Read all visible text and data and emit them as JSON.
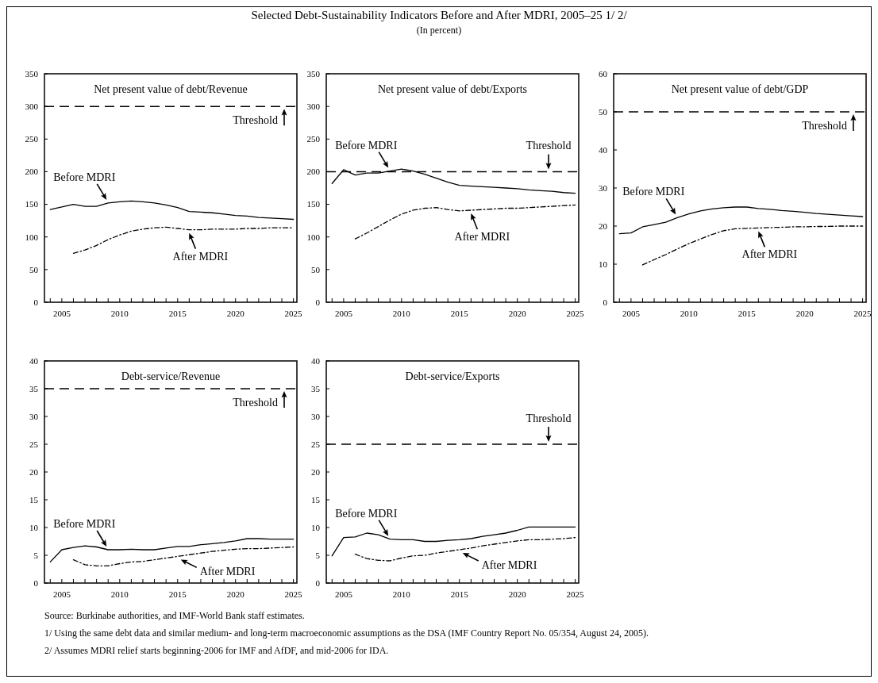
{
  "chart_data": [
    {
      "type": "line",
      "title": "Net present value of debt/Revenue",
      "annotations": [
        "Selected Debt-Sustainability Indicators Before and After MDRI, 2005–25 1/ 2/",
        "(In percent)"
      ],
      "xlim": [
        2003.5,
        2025.3
      ],
      "xticks": [
        {
          "value": 2004,
          "label": null
        },
        2005,
        {
          "value": 2006,
          "label": null
        },
        {
          "value": 2007,
          "label": null
        },
        {
          "value": 2008,
          "label": null
        },
        {
          "value": 2009,
          "label": null
        },
        2010,
        {
          "value": 2011,
          "label": null
        },
        {
          "value": 2012,
          "label": null
        },
        {
          "value": 2013,
          "label": null
        },
        {
          "value": 2014,
          "label": null
        },
        2015,
        {
          "value": 2016,
          "label": null
        },
        {
          "value": 2017,
          "label": null
        },
        {
          "value": 2018,
          "label": null
        },
        {
          "value": 2019,
          "label": null
        },
        2020,
        {
          "value": 2021,
          "label": null
        },
        {
          "value": 2022,
          "label": null
        },
        {
          "value": 2023,
          "label": null
        },
        {
          "value": 2024,
          "label": null
        },
        2025
      ],
      "ylim": [
        0,
        350
      ],
      "yticks": [
        0,
        50,
        100,
        150,
        200,
        250,
        300,
        350
      ],
      "ref_lines": [
        {
          "axis": "y",
          "value": 300,
          "label": "Threshold",
          "line_style": "dashed",
          "color": "#000000"
        }
      ],
      "series": [
        {
          "name": "Before MDRI",
          "color": "#000000",
          "line_style": "solid",
          "x": [
            2004,
            2005,
            2006,
            2007,
            2008,
            2009,
            2010,
            2011,
            2012,
            2013,
            2014,
            2015,
            2016,
            2017,
            2018,
            2019,
            2020,
            2021,
            2022,
            2023,
            2024,
            2025
          ],
          "values": [
            142,
            146,
            150,
            147,
            147,
            152,
            154,
            155,
            154,
            152,
            149,
            145,
            139,
            138,
            137,
            135,
            133,
            132,
            130,
            129,
            128,
            127
          ]
        },
        {
          "name": "After MDRI",
          "color": "#000000",
          "line_style": "dashed",
          "x": [
            2006,
            2007,
            2008,
            2009,
            2010,
            2011,
            2012,
            2013,
            2014,
            2015,
            2016,
            2017,
            2018,
            2019,
            2020,
            2021,
            2022,
            2023,
            2024,
            2025
          ],
          "values": [
            75,
            80,
            87,
            96,
            103,
            109,
            112,
            114,
            115,
            113,
            111,
            111,
            112,
            112,
            112,
            113,
            113,
            114,
            114,
            114
          ]
        }
      ]
    },
    {
      "type": "line",
      "title": "Net present value of debt/Exports",
      "xlim": [
        2003.5,
        2025.3
      ],
      "xticks": [
        {
          "value": 2004,
          "label": null
        },
        2005,
        {
          "value": 2006,
          "label": null
        },
        {
          "value": 2007,
          "label": null
        },
        {
          "value": 2008,
          "label": null
        },
        {
          "value": 2009,
          "label": null
        },
        2010,
        {
          "value": 2011,
          "label": null
        },
        {
          "value": 2012,
          "label": null
        },
        {
          "value": 2013,
          "label": null
        },
        {
          "value": 2014,
          "label": null
        },
        2015,
        {
          "value": 2016,
          "label": null
        },
        {
          "value": 2017,
          "label": null
        },
        {
          "value": 2018,
          "label": null
        },
        {
          "value": 2019,
          "label": null
        },
        2020,
        {
          "value": 2021,
          "label": null
        },
        {
          "value": 2022,
          "label": null
        },
        {
          "value": 2023,
          "label": null
        },
        {
          "value": 2024,
          "label": null
        },
        2025
      ],
      "ylim": [
        0,
        350
      ],
      "yticks": [
        0,
        50,
        100,
        150,
        200,
        250,
        300,
        350
      ],
      "ref_lines": [
        {
          "axis": "y",
          "value": 200,
          "label": "Threshold",
          "line_style": "dashed",
          "color": "#000000"
        }
      ],
      "series": [
        {
          "name": "Before MDRI",
          "color": "#000000",
          "line_style": "solid",
          "x": [
            2004,
            2005,
            2006,
            2007,
            2008,
            2009,
            2010,
            2011,
            2012,
            2013,
            2014,
            2015,
            2016,
            2017,
            2018,
            2019,
            2020,
            2021,
            2022,
            2023,
            2024,
            2025
          ],
          "values": [
            182,
            203,
            195,
            198,
            198,
            201,
            204,
            201,
            196,
            190,
            184,
            179,
            178,
            177,
            176,
            175,
            174,
            172,
            171,
            170,
            168,
            167
          ]
        },
        {
          "name": "After MDRI",
          "color": "#000000",
          "line_style": "dashed",
          "x": [
            2006,
            2007,
            2008,
            2009,
            2010,
            2011,
            2012,
            2013,
            2014,
            2015,
            2016,
            2017,
            2018,
            2019,
            2020,
            2021,
            2022,
            2023,
            2024,
            2025
          ],
          "values": [
            97,
            106,
            116,
            126,
            135,
            141,
            144,
            145,
            142,
            140,
            141,
            142,
            143,
            144,
            144,
            145,
            146,
            147,
            148,
            149
          ]
        }
      ]
    },
    {
      "type": "line",
      "title": "Net present value of debt/GDP",
      "xlim": [
        2003.5,
        2025.3
      ],
      "xticks": [
        {
          "value": 2004,
          "label": null
        },
        2005,
        {
          "value": 2006,
          "label": null
        },
        {
          "value": 2007,
          "label": null
        },
        {
          "value": 2008,
          "label": null
        },
        {
          "value": 2009,
          "label": null
        },
        2010,
        {
          "value": 2011,
          "label": null
        },
        {
          "value": 2012,
          "label": null
        },
        {
          "value": 2013,
          "label": null
        },
        {
          "value": 2014,
          "label": null
        },
        2015,
        {
          "value": 2016,
          "label": null
        },
        {
          "value": 2017,
          "label": null
        },
        {
          "value": 2018,
          "label": null
        },
        {
          "value": 2019,
          "label": null
        },
        2020,
        {
          "value": 2021,
          "label": null
        },
        {
          "value": 2022,
          "label": null
        },
        {
          "value": 2023,
          "label": null
        },
        {
          "value": 2024,
          "label": null
        },
        2025
      ],
      "ylim": [
        0,
        60
      ],
      "yticks": [
        0,
        10,
        20,
        30,
        40,
        50,
        60
      ],
      "ref_lines": [
        {
          "axis": "y",
          "value": 50,
          "label": "Threshold",
          "line_style": "dashed",
          "color": "#000000"
        }
      ],
      "series": [
        {
          "name": "Before MDRI",
          "color": "#000000",
          "line_style": "solid",
          "x": [
            2004,
            2005,
            2006,
            2007,
            2008,
            2009,
            2010,
            2011,
            2012,
            2013,
            2014,
            2015,
            2016,
            2017,
            2018,
            2019,
            2020,
            2021,
            2022,
            2023,
            2024,
            2025
          ],
          "values": [
            18,
            18.2,
            19.8,
            20.4,
            21,
            22.2,
            23.2,
            24,
            24.5,
            24.8,
            25,
            25,
            24.6,
            24.4,
            24.1,
            23.9,
            23.6,
            23.3,
            23.1,
            22.9,
            22.7,
            22.5
          ]
        },
        {
          "name": "After MDRI",
          "color": "#000000",
          "line_style": "dashed",
          "x": [
            2006,
            2007,
            2008,
            2009,
            2010,
            2011,
            2012,
            2013,
            2014,
            2015,
            2016,
            2017,
            2018,
            2019,
            2020,
            2021,
            2022,
            2023,
            2024,
            2025
          ],
          "values": [
            9.8,
            11.2,
            12.5,
            14,
            15.4,
            16.6,
            17.8,
            18.8,
            19.3,
            19.4,
            19.5,
            19.6,
            19.7,
            19.8,
            19.8,
            19.9,
            19.9,
            20,
            20,
            20
          ]
        }
      ]
    },
    {
      "type": "line",
      "title": "Debt-service/Revenue",
      "xlim": [
        2003.5,
        2025.3
      ],
      "xticks": [
        {
          "value": 2004,
          "label": null
        },
        2005,
        {
          "value": 2006,
          "label": null
        },
        {
          "value": 2007,
          "label": null
        },
        {
          "value": 2008,
          "label": null
        },
        {
          "value": 2009,
          "label": null
        },
        2010,
        {
          "value": 2011,
          "label": null
        },
        {
          "value": 2012,
          "label": null
        },
        {
          "value": 2013,
          "label": null
        },
        {
          "value": 2014,
          "label": null
        },
        2015,
        {
          "value": 2016,
          "label": null
        },
        {
          "value": 2017,
          "label": null
        },
        {
          "value": 2018,
          "label": null
        },
        {
          "value": 2019,
          "label": null
        },
        2020,
        {
          "value": 2021,
          "label": null
        },
        {
          "value": 2022,
          "label": null
        },
        {
          "value": 2023,
          "label": null
        },
        {
          "value": 2024,
          "label": null
        },
        2025
      ],
      "ylim": [
        0,
        40
      ],
      "yticks": [
        0,
        5,
        10,
        15,
        20,
        25,
        30,
        35,
        40
      ],
      "ref_lines": [
        {
          "axis": "y",
          "value": 35,
          "label": "Threshold",
          "line_style": "dashed",
          "color": "#000000"
        }
      ],
      "series": [
        {
          "name": "Before MDRI",
          "color": "#000000",
          "line_style": "solid",
          "x": [
            2004,
            2005,
            2006,
            2007,
            2008,
            2009,
            2010,
            2011,
            2012,
            2013,
            2014,
            2015,
            2016,
            2017,
            2018,
            2019,
            2020,
            2021,
            2022,
            2023,
            2024,
            2025
          ],
          "values": [
            3.8,
            6,
            6.4,
            6.7,
            6.5,
            6,
            6,
            6.1,
            6,
            6,
            6.3,
            6.6,
            6.6,
            6.9,
            7.1,
            7.3,
            7.6,
            8,
            8,
            7.9,
            7.9,
            7.9
          ]
        },
        {
          "name": "After MDRI",
          "color": "#000000",
          "line_style": "dashed",
          "x": [
            2006,
            2007,
            2008,
            2009,
            2010,
            2011,
            2012,
            2013,
            2014,
            2015,
            2016,
            2017,
            2018,
            2019,
            2020,
            2021,
            2022,
            2023,
            2024,
            2025
          ],
          "values": [
            4.2,
            3.3,
            3.1,
            3.1,
            3.5,
            3.8,
            3.9,
            4.2,
            4.5,
            4.8,
            5.1,
            5.4,
            5.7,
            5.9,
            6.1,
            6.2,
            6.2,
            6.3,
            6.4,
            6.5
          ]
        }
      ]
    },
    {
      "type": "line",
      "title": "Debt-service/Exports",
      "annotations": [
        "Source: Burkinabe authorities, and IMF-World Bank staff estimates.",
        "1/ Using the same debt data and similar medium- and long-term macroeconomic assumptions as the DSA (IMF Country Report No. 05/354, August 24, 2005).",
        "2/ Assumes MDRI relief starts beginning-2006 for IMF and AfDF, and mid-2006 for IDA."
      ],
      "xlim": [
        2003.5,
        2025.3
      ],
      "xticks": [
        {
          "value": 2004,
          "label": null
        },
        2005,
        {
          "value": 2006,
          "label": null
        },
        {
          "value": 2007,
          "label": null
        },
        {
          "value": 2008,
          "label": null
        },
        {
          "value": 2009,
          "label": null
        },
        2010,
        {
          "value": 2011,
          "label": null
        },
        {
          "value": 2012,
          "label": null
        },
        {
          "value": 2013,
          "label": null
        },
        {
          "value": 2014,
          "label": null
        },
        2015,
        {
          "value": 2016,
          "label": null
        },
        {
          "value": 2017,
          "label": null
        },
        {
          "value": 2018,
          "label": null
        },
        {
          "value": 2019,
          "label": null
        },
        2020,
        {
          "value": 2021,
          "label": null
        },
        {
          "value": 2022,
          "label": null
        },
        {
          "value": 2023,
          "label": null
        },
        {
          "value": 2024,
          "label": null
        },
        2025
      ],
      "ylim": [
        0,
        40
      ],
      "yticks": [
        0,
        5,
        10,
        15,
        20,
        25,
        30,
        35,
        40
      ],
      "ref_lines": [
        {
          "axis": "y",
          "value": 25,
          "label": "Threshold",
          "line_style": "dashed",
          "color": "#000000"
        }
      ],
      "series": [
        {
          "name": "Before MDRI",
          "color": "#000000",
          "line_style": "solid",
          "x": [
            2004,
            2005,
            2006,
            2007,
            2008,
            2009,
            2010,
            2011,
            2012,
            2013,
            2014,
            2015,
            2016,
            2017,
            2018,
            2019,
            2020,
            2021,
            2022,
            2023,
            2024,
            2025
          ],
          "values": [
            4.9,
            8.2,
            8.3,
            9,
            8.7,
            7.9,
            7.8,
            7.8,
            7.5,
            7.5,
            7.7,
            7.8,
            8,
            8.4,
            8.7,
            9,
            9.5,
            10.1,
            10.1,
            10.1,
            10.1,
            10.1
          ]
        },
        {
          "name": "After MDRI",
          "color": "#000000",
          "line_style": "dashed",
          "x": [
            2006,
            2007,
            2008,
            2009,
            2010,
            2011,
            2012,
            2013,
            2014,
            2015,
            2016,
            2017,
            2018,
            2019,
            2020,
            2021,
            2022,
            2023,
            2024,
            2025
          ],
          "values": [
            5.2,
            4.4,
            4.1,
            4,
            4.5,
            4.9,
            5,
            5.4,
            5.7,
            6,
            6.3,
            6.7,
            7,
            7.3,
            7.6,
            7.8,
            7.8,
            7.9,
            8,
            8.2
          ]
        }
      ]
    }
  ]
}
